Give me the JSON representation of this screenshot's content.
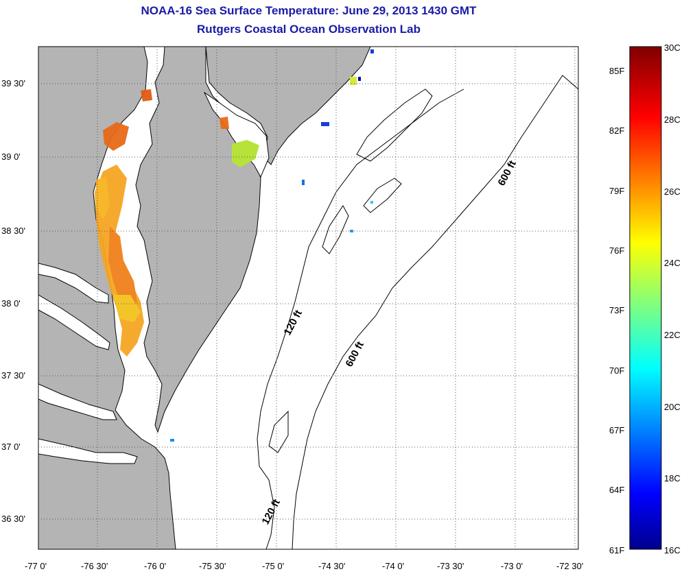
{
  "title": "NOAA-16 Sea Surface Temperature:  June 29, 2013 1430 GMT",
  "subtitle": "Rutgers Coastal Ocean Observation Lab",
  "lat_ticks": [
    "39 30'",
    "39 0'",
    "38 30'",
    "38 0'",
    "37 30'",
    "37 0'",
    "36 30'"
  ],
  "lon_ticks": [
    "-77 0'",
    "-76 30'",
    "-76 0'",
    "-75 30'",
    "-75 0'",
    "-74 30'",
    "-74 0'",
    "-73 30'",
    "-73 0'",
    "-72 30'"
  ],
  "isobaths": [
    "120 ft",
    "600 ft",
    "600 ft",
    "120 ft"
  ],
  "colorbar": {
    "celsius": [
      "30C",
      "28C",
      "26C",
      "24C",
      "22C",
      "20C",
      "18C",
      "16C"
    ],
    "fahrenheit": [
      "85F",
      "82F",
      "79F",
      "76F",
      "73F",
      "70F",
      "67F",
      "64F",
      "61F"
    ],
    "min_c": 16,
    "max_c": 30
  },
  "colors": {
    "title": "#1a1aa6",
    "land": "#b4b4b4",
    "ocean": "#ffffff"
  }
}
